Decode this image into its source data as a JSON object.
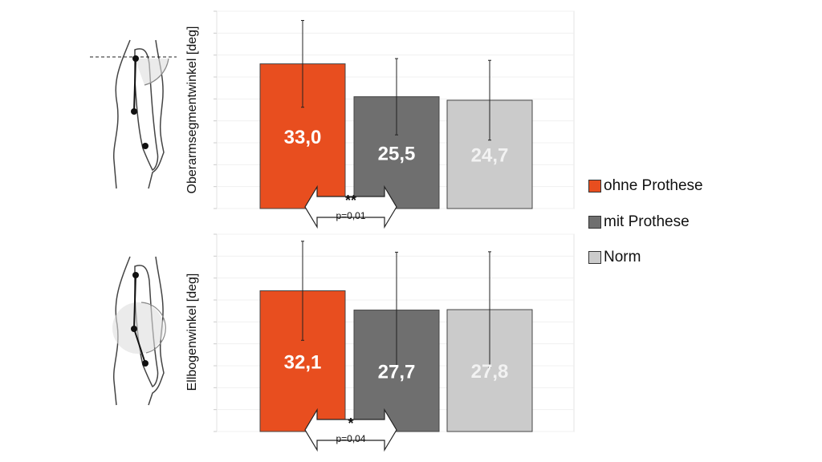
{
  "chart_data": [
    {
      "type": "bar",
      "ylabel": "Oberarmsegmentwinkel [deg]",
      "categories": [
        "ohne Prothese",
        "mit Prothese",
        "Norm"
      ],
      "values": [
        33.0,
        25.5,
        24.7
      ],
      "value_labels": [
        "33,0",
        "25,5",
        "24,7"
      ],
      "error": [
        9.9,
        8.7,
        9.1
      ],
      "ylim": [
        0,
        45
      ],
      "ytick_step": 5,
      "grid": true,
      "significance": {
        "stars": "**",
        "p": "p=0,01",
        "between": [
          "ohne Prothese",
          "mit Prothese"
        ]
      }
    },
    {
      "type": "bar",
      "ylabel": "Ellbogenwinkel [deg]",
      "categories": [
        "ohne Prothese",
        "mit Prothese",
        "Norm"
      ],
      "values": [
        32.1,
        27.7,
        27.8
      ],
      "value_labels": [
        "32,1",
        "27,7",
        "27,8"
      ],
      "error": [
        11.3,
        13.2,
        13.2
      ],
      "ylim": [
        0,
        45
      ],
      "ytick_step": 5,
      "grid": true,
      "significance": {
        "stars": "*",
        "p": "p=0,04",
        "between": [
          "ohne Prothese",
          "mit Prothese"
        ]
      }
    }
  ],
  "legend": {
    "placement": "right",
    "items": [
      {
        "label": "ohne Prothese",
        "color": "#e84e1f"
      },
      {
        "label": "mit Prothese",
        "color": "#6f6f6f"
      },
      {
        "label": "Norm",
        "color": "#cbcbcb"
      }
    ]
  }
}
